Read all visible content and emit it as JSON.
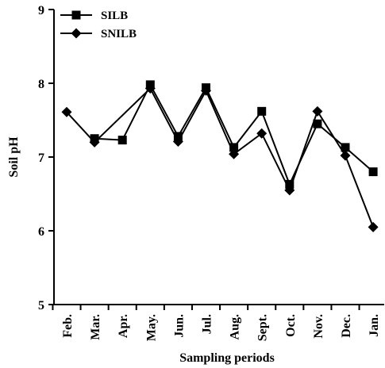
{
  "chart_data": {
    "type": "line",
    "xlabel": "Sampling periods",
    "ylabel": "Soil pH",
    "ylim": [
      5,
      9
    ],
    "yticks": [
      "5",
      "6",
      "7",
      "8",
      "9"
    ],
    "categories": [
      "Feb.",
      "Mar.",
      "Apr.",
      "May.",
      "Jun.",
      "Jul.",
      "Aug.",
      "Sept.",
      "Oct.",
      "Nov.",
      "Dec.",
      "Jan."
    ],
    "legend_position": "top-left",
    "series": [
      {
        "name": "SILB",
        "marker": "square",
        "color": "#000000",
        "values": [
          null,
          7.25,
          7.23,
          7.98,
          7.28,
          7.94,
          7.13,
          7.62,
          6.63,
          7.45,
          7.13,
          6.8
        ]
      },
      {
        "name": "SNILB",
        "marker": "diamond",
        "color": "#000000",
        "values": [
          7.61,
          7.2,
          null,
          7.93,
          7.21,
          7.9,
          7.04,
          7.32,
          6.55,
          7.62,
          7.02,
          6.05
        ]
      }
    ]
  }
}
